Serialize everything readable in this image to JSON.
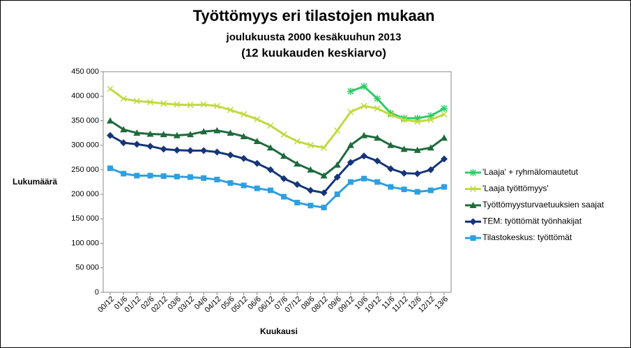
{
  "chart_data": {
    "type": "line",
    "title": "Työttömyys eri tilastojen mukaan",
    "subtitle": "joulukuusta 2000 kesäkuuhun 2013",
    "subtitle2": "(12 kuukauden keskiarvo)",
    "ylabel": "Lukumäärä",
    "xlabel": "Kuukausi",
    "categories": [
      "00/12",
      "01/6",
      "01/12",
      "02/6",
      "02/12",
      "03/6",
      "03/12",
      "04/6",
      "04/12",
      "05/6",
      "05/12",
      "06/6",
      "06/12",
      "07/6",
      "07/12",
      "08/6",
      "08/12",
      "09/6",
      "09/12",
      "10/6",
      "10/12",
      "11/6",
      "11/12",
      "12/6",
      "12/12",
      "13/6"
    ],
    "ylim": [
      0,
      450000
    ],
    "yticks": [
      {
        "value": 0,
        "label": "0"
      },
      {
        "value": 50000,
        "label": "50 000"
      },
      {
        "value": 100000,
        "label": "100 000"
      },
      {
        "value": 150000,
        "label": "150 000"
      },
      {
        "value": 200000,
        "label": "200 000"
      },
      {
        "value": 250000,
        "label": "250 000"
      },
      {
        "value": 300000,
        "label": "300 000"
      },
      {
        "value": 350000,
        "label": "350 000"
      },
      {
        "value": 400000,
        "label": "400 000"
      },
      {
        "value": 450000,
        "label": "450 000"
      }
    ],
    "legend": "right",
    "series": [
      {
        "name": "'Laaja' + ryhmälomautetut",
        "color": "#2ecc66",
        "marker": "star",
        "values": [
          null,
          null,
          null,
          null,
          null,
          null,
          null,
          null,
          null,
          null,
          null,
          null,
          null,
          null,
          null,
          null,
          null,
          null,
          410000,
          420000,
          395000,
          365000,
          355000,
          355000,
          360000,
          375000
        ]
      },
      {
        "name": "'Laaja työttömyys'",
        "color": "#c2d93e",
        "marker": "x",
        "values": [
          415000,
          395000,
          390000,
          388000,
          385000,
          383000,
          382000,
          383000,
          380000,
          372000,
          363000,
          353000,
          340000,
          322000,
          308000,
          300000,
          295000,
          330000,
          368000,
          380000,
          375000,
          362000,
          352000,
          348000,
          352000,
          363000
        ]
      },
      {
        "name": "Työttömyysturvaetuuksien saajat",
        "color": "#1e6b3c",
        "marker": "triangle",
        "values": [
          350000,
          332000,
          325000,
          323000,
          322000,
          320000,
          322000,
          328000,
          330000,
          325000,
          318000,
          308000,
          295000,
          278000,
          262000,
          250000,
          238000,
          260000,
          300000,
          320000,
          315000,
          300000,
          292000,
          290000,
          295000,
          315000
        ]
      },
      {
        "name": "TEM: työttömät työnhakijat",
        "color": "#14357a",
        "marker": "diamond",
        "values": [
          320000,
          305000,
          302000,
          298000,
          292000,
          290000,
          289000,
          289000,
          286000,
          280000,
          273000,
          263000,
          250000,
          232000,
          220000,
          208000,
          203000,
          235000,
          265000,
          278000,
          268000,
          252000,
          243000,
          242000,
          250000,
          272000
        ]
      },
      {
        "name": "Tilastokeskus: työttömät",
        "color": "#2e9fe0",
        "marker": "square",
        "values": [
          253000,
          242000,
          238000,
          238000,
          237000,
          236000,
          235000,
          233000,
          230000,
          223000,
          218000,
          212000,
          208000,
          195000,
          183000,
          177000,
          173000,
          200000,
          225000,
          232000,
          225000,
          215000,
          210000,
          205000,
          208000,
          215000
        ]
      }
    ]
  }
}
